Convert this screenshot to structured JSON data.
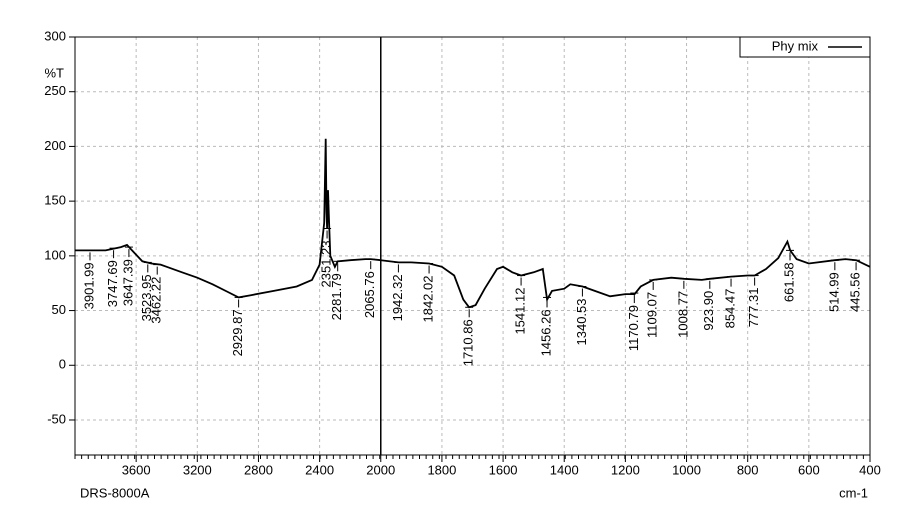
{
  "chart_data": {
    "type": "line",
    "y_label": "%T",
    "x_label": "cm-1",
    "instrument": "DRS-8000A",
    "xlim": [
      4000,
      400
    ],
    "xbreak": 2000,
    "ylim": [
      -82,
      300
    ],
    "xticks": [
      3600,
      3200,
      2800,
      2400,
      2000,
      1800,
      1600,
      1400,
      1200,
      1000,
      800,
      600,
      400
    ],
    "yticks": [
      -50,
      0,
      50,
      100,
      150,
      200,
      250,
      300
    ],
    "grid": true,
    "legend": "top-right",
    "series": [
      {
        "name": "Phy mix",
        "color": "#000000",
        "x": [
          4000,
          3900,
          3800,
          3700,
          3660,
          3620,
          3560,
          3500,
          3440,
          3400,
          3300,
          3200,
          3100,
          3000,
          2930,
          2850,
          2700,
          2550,
          2450,
          2400,
          2370,
          2360,
          2355,
          2351,
          2345,
          2338,
          2330,
          2300,
          2282,
          2200,
          2100,
          2066,
          2000,
          1942,
          1900,
          1842,
          1800,
          1760,
          1730,
          1711,
          1690,
          1660,
          1620,
          1600,
          1570,
          1541,
          1500,
          1470,
          1456,
          1440,
          1400,
          1380,
          1340,
          1300,
          1250,
          1200,
          1170,
          1150,
          1109,
          1050,
          1008,
          950,
          924,
          854,
          800,
          777,
          740,
          700,
          670,
          661,
          640,
          600,
          515,
          480,
          445,
          400
        ],
        "values": [
          105,
          105,
          105,
          108,
          110,
          104,
          95,
          93,
          92,
          90,
          85,
          80,
          74,
          67,
          62,
          64,
          68,
          72,
          78,
          92,
          130,
          207,
          140,
          125,
          160,
          130,
          100,
          90,
          95,
          96,
          97,
          97,
          96,
          94,
          94,
          93,
          90,
          82,
          60,
          53,
          55,
          70,
          88,
          90,
          85,
          82,
          85,
          88,
          60,
          68,
          70,
          74,
          72,
          68,
          63,
          65,
          65,
          72,
          78,
          80,
          79,
          78,
          79,
          81,
          82,
          82,
          88,
          98,
          113,
          105,
          97,
          93,
          96,
          97,
          96,
          90
        ]
      }
    ],
    "peaks": {
      "x": [
        3901.99,
        3747.69,
        3647.39,
        3523.95,
        3462.22,
        2929.87,
        2351.23,
        2281.79,
        2065.76,
        1942.32,
        1842.02,
        1710.86,
        1541.12,
        1456.26,
        1340.53,
        1170.79,
        1109.07,
        1008.77,
        923.9,
        854.47,
        777.31,
        661.58,
        514.99,
        445.56
      ],
      "y": [
        105,
        107,
        108,
        94,
        92,
        62,
        125,
        95,
        97,
        94,
        93,
        53,
        82,
        62,
        72,
        66,
        78,
        79,
        79,
        81,
        82,
        105,
        96,
        96
      ],
      "labels": [
        "3901.99",
        "3747.69",
        "3647.39",
        "3523.95",
        "3462.22",
        "2929.87",
        "2351.23",
        "2281.79",
        "2065.76",
        "1942.32",
        "1842.02",
        "1710.86",
        "1541.12",
        "1456.26",
        "1340.53",
        "1170.79",
        "1109.07",
        "1008.77",
        "923.90",
        "854.47",
        "777.31",
        "661.58",
        "514.99",
        "445.56"
      ]
    }
  }
}
